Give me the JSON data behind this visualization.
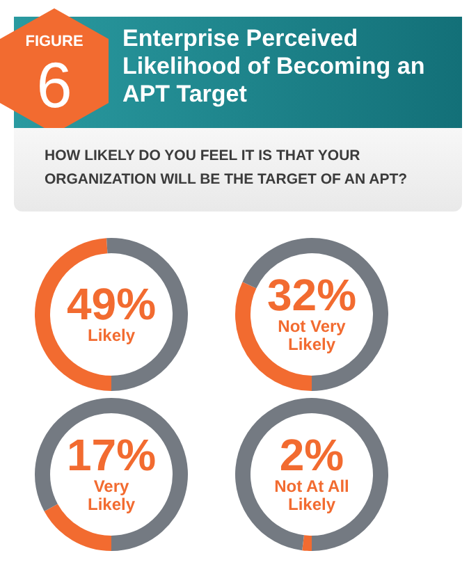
{
  "chart_data": [
    {
      "type": "donut",
      "title": "Enterprise Perceived Likelihood of Becoming an APT Target",
      "subtitle": "HOW LIKELY DO YOU FEEL IT IS THAT YOUR ORGANIZATION WILL BE THE TARGET OF AN APT?",
      "annotations": [
        "FIGURE",
        "6"
      ],
      "categories": [
        "Likely",
        null
      ],
      "values": [
        49,
        51
      ],
      "colors": [
        "#f26b30",
        "#747a82"
      ],
      "value_labels": [
        "49%",
        null
      ],
      "legend": false
    },
    {
      "type": "donut",
      "categories": [
        "Not Very Likely",
        null
      ],
      "values": [
        32,
        68
      ],
      "colors": [
        "#f26b30",
        "#747a82"
      ],
      "value_labels": [
        "32%",
        null
      ],
      "legend": false
    },
    {
      "type": "donut",
      "categories": [
        "Very Likely",
        null
      ],
      "values": [
        17,
        83
      ],
      "colors": [
        "#f26b30",
        "#747a82"
      ],
      "value_labels": [
        "17%",
        null
      ],
      "legend": false
    },
    {
      "type": "donut",
      "categories": [
        "Not At All Likely",
        null
      ],
      "values": [
        2,
        98
      ],
      "colors": [
        "#f26b30",
        "#747a82"
      ],
      "value_labels": [
        "2%",
        null
      ],
      "legend": false
    }
  ]
}
